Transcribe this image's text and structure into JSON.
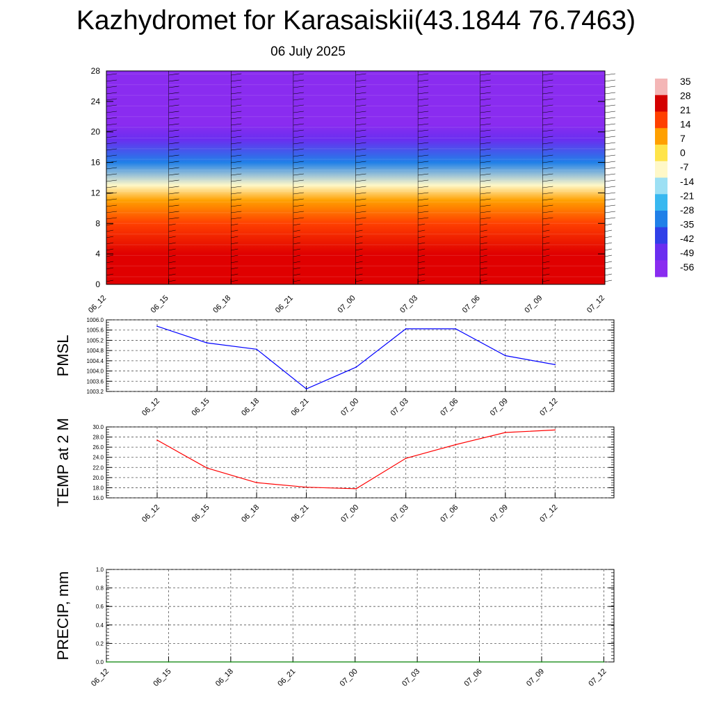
{
  "header": {
    "title": "Kazhydromet for Karasaiskii(43.1844 76.7463)",
    "date": "06 July 2025"
  },
  "colorbar": {
    "labels": [
      "35",
      "28",
      "21",
      "14",
      "7",
      "0",
      "-7",
      "-14",
      "-21",
      "-28",
      "-35",
      "-42",
      "-49",
      "-56"
    ],
    "colors": [
      "#f4b6b6",
      "#d40000",
      "#ff4000",
      "#ffa000",
      "#ffe44a",
      "#fff8c8",
      "#9de0f4",
      "#38b8f0",
      "#2080e8",
      "#3040e8",
      "#6a2ef0",
      "#8a2cf0"
    ]
  },
  "chart_data": [
    {
      "type": "heatmap",
      "name": "upper-air-temperature-cross-section",
      "categories": [
        "06_12",
        "06_15",
        "06_18",
        "06_21",
        "07_00",
        "07_03",
        "07_06",
        "07_09",
        "07_12"
      ],
      "ylim": [
        0,
        28
      ],
      "yticks": [
        "0",
        "4",
        "8",
        "12",
        "16",
        "20",
        "24",
        "28"
      ],
      "temperature_profile": [
        {
          "height": 0,
          "temp": 32
        },
        {
          "height": 4,
          "temp": 25
        },
        {
          "height": 8,
          "temp": 16
        },
        {
          "height": 11,
          "temp": 6
        },
        {
          "height": 13,
          "temp": -10
        },
        {
          "height": 16,
          "temp": -28
        },
        {
          "height": 19,
          "temp": -45
        },
        {
          "height": 21,
          "temp": -56
        },
        {
          "height": 28,
          "temp": -58
        }
      ],
      "wind_barbs": true
    },
    {
      "type": "line",
      "ylabel": "PMSL",
      "categories": [
        "06_12",
        "06_15",
        "06_18",
        "06_21",
        "07_00",
        "07_03",
        "07_06",
        "07_09",
        "07_12"
      ],
      "values": [
        1005.75,
        1005.1,
        1004.85,
        1003.3,
        1004.15,
        1005.65,
        1005.65,
        1004.6,
        1004.25
      ],
      "ylim": [
        1003.2,
        1006.0
      ],
      "yticks": [
        "1003.2",
        "1003.6",
        "1004.0",
        "1004.4",
        "1004.8",
        "1005.2",
        "1005.6",
        "1006.0"
      ],
      "color": "#0000ff"
    },
    {
      "type": "line",
      "ylabel": "TEMP at 2 M",
      "categories": [
        "06_12",
        "06_15",
        "06_18",
        "06_21",
        "07_00",
        "07_03",
        "07_06",
        "07_09",
        "07_12"
      ],
      "values": [
        27.4,
        21.9,
        19.0,
        18.1,
        17.8,
        23.8,
        26.5,
        28.9,
        29.4
      ],
      "ylim": [
        16.0,
        30.0
      ],
      "yticks": [
        "16.0",
        "18.0",
        "20.0",
        "22.0",
        "24.0",
        "26.0",
        "28.0",
        "30.0"
      ],
      "color": "#ff0000"
    },
    {
      "type": "line",
      "ylabel": "PRECIP, mm",
      "categories": [
        "06_12",
        "06_15",
        "06_18",
        "06_21",
        "07_00",
        "07_03",
        "07_06",
        "07_09",
        "07_12"
      ],
      "values": [
        0,
        0,
        0,
        0,
        0,
        0,
        0,
        0,
        0
      ],
      "ylim": [
        0.0,
        1.0
      ],
      "yticks": [
        "0.0",
        "0.2",
        "0.4",
        "0.6",
        "0.8",
        "1.0"
      ],
      "color": "#008000"
    }
  ]
}
